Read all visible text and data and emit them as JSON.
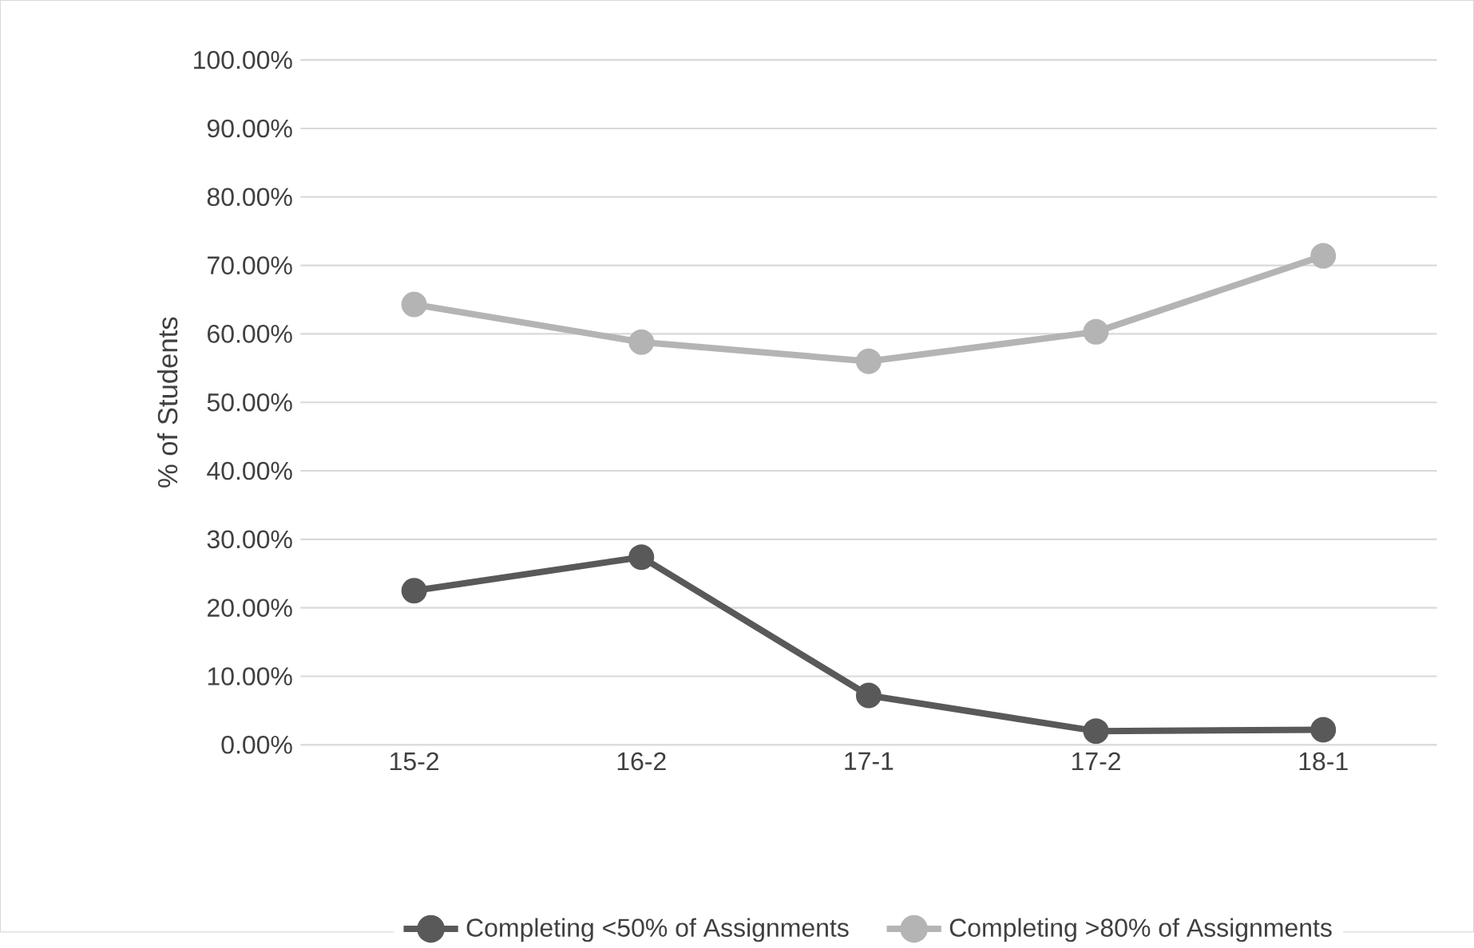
{
  "chart_data": {
    "type": "line",
    "ylabel": "% of Students",
    "categories": [
      "15-2",
      "16-2",
      "17-1",
      "17-2",
      "18-1"
    ],
    "series": [
      {
        "name": "Completing <50% of Assignments",
        "color": "#595959",
        "values": [
          22.5,
          27.4,
          7.2,
          2.0,
          2.2
        ]
      },
      {
        "name": "Completing >80% of Assignments",
        "color": "#b4b4b4",
        "values": [
          64.3,
          58.8,
          56.0,
          60.3,
          71.4
        ]
      }
    ],
    "ylim": [
      0,
      100
    ],
    "yticks": [
      {
        "value": 0,
        "label": "0.00%"
      },
      {
        "value": 10,
        "label": "10.00%"
      },
      {
        "value": 20,
        "label": "20.00%"
      },
      {
        "value": 30,
        "label": "30.00%"
      },
      {
        "value": 40,
        "label": "40.00%"
      },
      {
        "value": 50,
        "label": "50.00%"
      },
      {
        "value": 60,
        "label": "60.00%"
      },
      {
        "value": 70,
        "label": "70.00%"
      },
      {
        "value": 80,
        "label": "80.00%"
      },
      {
        "value": 90,
        "label": "90.00%"
      },
      {
        "value": 100,
        "label": "100.00%"
      }
    ],
    "grid": "y",
    "legend": "bottom",
    "marker": "circle",
    "line_style": "solid"
  }
}
